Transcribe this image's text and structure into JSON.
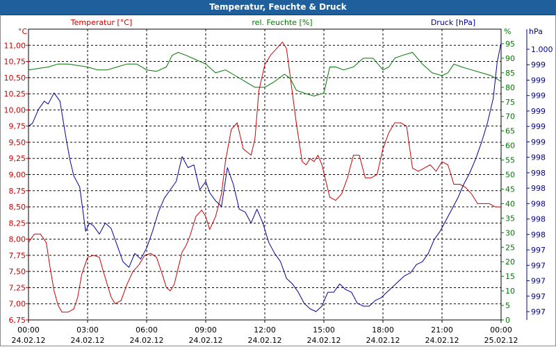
{
  "window": {
    "title": "Temperatur, Feuchte & Druck"
  },
  "colors": {
    "temperature": "#cc0000",
    "humidity": "#007700",
    "pressure": "#000099",
    "title_bar": "#1f5f9c",
    "grid": "#000000"
  },
  "chart_data": {
    "type": "line",
    "title": "Temperatur, Feuchte & Druck",
    "grid": true,
    "x_ticks": [
      {
        "time": "00:00",
        "date": "24.02.12"
      },
      {
        "time": "03:00",
        "date": "24.02.12"
      },
      {
        "time": "06:00",
        "date": "24.02.12"
      },
      {
        "time": "09:00",
        "date": "24.02.12"
      },
      {
        "time": "12:00",
        "date": "24.02.12"
      },
      {
        "time": "15:00",
        "date": "24.02.12"
      },
      {
        "time": "18:00",
        "date": "24.02.12"
      },
      {
        "time": "21:00",
        "date": "24.02.12"
      },
      {
        "time": "00:00",
        "date": "25.02.12"
      }
    ],
    "x_range_hours": [
      0,
      24
    ],
    "axes": {
      "temperature": {
        "label": "Temperatur [°C]",
        "unit": "°C",
        "ylim": [
          6.75,
          11.25
        ],
        "ticks": [
          "6,75",
          "7,00",
          "7,25",
          "7,50",
          "7,75",
          "8,00",
          "8,25",
          "8,50",
          "8,75",
          "9,00",
          "9,25",
          "9,50",
          "9,75",
          "10,00",
          "10,25",
          "10,50",
          "10,75",
          "11,00"
        ]
      },
      "humidity": {
        "label": "rel. Feuchte [%]",
        "unit": "%",
        "ylim": [
          0,
          100
        ],
        "ticks": [
          "0",
          "5",
          "10",
          "15",
          "20",
          "25",
          "30",
          "35",
          "40",
          "45",
          "50",
          "55",
          "60",
          "65",
          "70",
          "75",
          "80",
          "85",
          "90",
          "95"
        ]
      },
      "pressure": {
        "label": "Druck [hPa]",
        "unit": "hPa",
        "ticks": [
          "997",
          "997",
          "997",
          "997",
          "997",
          "998",
          "998",
          "998",
          "998",
          "998",
          "998",
          "999",
          "999",
          "999",
          "999",
          "999",
          "999",
          "1.000"
        ]
      }
    },
    "series": [
      {
        "name": "Temperatur [°C]",
        "axis": "temperature",
        "x": [
          0,
          0.3,
          0.6,
          0.9,
          1.1,
          1.3,
          1.5,
          1.7,
          2.0,
          2.3,
          2.5,
          2.7,
          3.0,
          3.3,
          3.6,
          3.8,
          4.0,
          4.2,
          4.4,
          4.7,
          5.0,
          5.3,
          5.6,
          5.9,
          6.2,
          6.5,
          6.8,
          7.0,
          7.2,
          7.4,
          7.6,
          7.8,
          8.0,
          8.2,
          8.5,
          8.8,
          9.0,
          9.2,
          9.5,
          9.8,
          10.0,
          10.3,
          10.6,
          10.9,
          11.1,
          11.3,
          11.5,
          11.7,
          12.0,
          12.3,
          12.6,
          12.9,
          13.1,
          13.3,
          13.6,
          13.9,
          14.1,
          14.3,
          14.5,
          14.7,
          14.9,
          15.1,
          15.3,
          15.6,
          15.9,
          16.2,
          16.5,
          16.8,
          17.1,
          17.4,
          17.7,
          18.0,
          18.3,
          18.6,
          18.9,
          19.2,
          19.5,
          19.8,
          20.1,
          20.4,
          20.7,
          21.0,
          21.3,
          21.6,
          21.9,
          22.2,
          22.5,
          22.8,
          23.1,
          23.4,
          23.7,
          24.0
        ],
        "y": [
          7.95,
          8.08,
          8.08,
          7.95,
          7.55,
          7.2,
          6.98,
          6.87,
          6.87,
          6.92,
          7.1,
          7.45,
          7.72,
          7.75,
          7.72,
          7.5,
          7.3,
          7.1,
          7.0,
          7.05,
          7.3,
          7.5,
          7.6,
          7.75,
          7.78,
          7.72,
          7.45,
          7.25,
          7.2,
          7.3,
          7.55,
          7.8,
          7.9,
          8.05,
          8.35,
          8.45,
          8.35,
          8.15,
          8.35,
          8.7,
          9.2,
          9.7,
          9.8,
          9.4,
          9.35,
          9.3,
          9.55,
          10.3,
          10.7,
          10.85,
          10.95,
          11.05,
          10.95,
          10.5,
          9.8,
          9.2,
          9.15,
          9.25,
          9.2,
          9.3,
          9.15,
          8.9,
          8.65,
          8.6,
          8.7,
          8.95,
          9.3,
          9.3,
          8.95,
          8.95,
          9.0,
          9.4,
          9.65,
          9.8,
          9.8,
          9.75,
          9.1,
          9.05,
          9.1,
          9.15,
          9.05,
          9.2,
          9.15,
          8.85,
          8.85,
          8.8,
          8.7,
          8.55,
          8.55,
          8.55,
          8.5,
          8.5
        ]
      },
      {
        "name": "rel. Feuchte [%]",
        "axis": "humidity",
        "x": [
          0,
          0.5,
          1.0,
          1.5,
          2.0,
          2.5,
          3.0,
          3.5,
          4.0,
          4.5,
          5.0,
          5.5,
          6.0,
          6.5,
          7.0,
          7.3,
          7.6,
          8.0,
          8.5,
          9.0,
          9.5,
          10.0,
          10.5,
          11.0,
          11.5,
          12.0,
          12.5,
          13.0,
          13.3,
          13.6,
          14.0,
          14.5,
          15.0,
          15.3,
          15.6,
          16.0,
          16.5,
          17.0,
          17.5,
          18.0,
          18.3,
          18.6,
          19.0,
          19.5,
          20.0,
          20.5,
          21.0,
          21.3,
          21.6,
          22.0,
          22.5,
          23.0,
          23.5,
          24.0
        ],
        "y": [
          86,
          86.5,
          87,
          88,
          88,
          87.5,
          87,
          86,
          86,
          87,
          88,
          88,
          86,
          85.5,
          87,
          91,
          92,
          91,
          89.5,
          88,
          85,
          86,
          84,
          82,
          80,
          80,
          82,
          84.5,
          83,
          79,
          78,
          77,
          78,
          87,
          87,
          86,
          87,
          90,
          90,
          86,
          87,
          90,
          91,
          92,
          88,
          85,
          84,
          85,
          88,
          87,
          86,
          85,
          84,
          82
        ]
      },
      {
        "name": "Druck [hPa]",
        "axis": "pressure",
        "x": [
          0,
          0.2,
          0.5,
          0.8,
          1.0,
          1.3,
          1.6,
          1.9,
          2.1,
          2.3,
          2.6,
          2.9,
          3.1,
          3.3,
          3.6,
          3.9,
          4.2,
          4.5,
          4.8,
          5.1,
          5.4,
          5.7,
          6.0,
          6.3,
          6.6,
          6.9,
          7.2,
          7.5,
          7.8,
          8.1,
          8.4,
          8.7,
          9.0,
          9.2,
          9.5,
          9.8,
          10.1,
          10.4,
          10.7,
          11.0,
          11.3,
          11.6,
          11.9,
          12.2,
          12.5,
          12.8,
          13.1,
          13.4,
          13.7,
          14.0,
          14.3,
          14.6,
          14.9,
          15.2,
          15.5,
          15.8,
          16.1,
          16.4,
          16.7,
          17.0,
          17.3,
          17.6,
          17.9,
          18.2,
          18.5,
          18.8,
          19.1,
          19.4,
          19.7,
          20.0,
          20.3,
          20.6,
          20.9,
          21.2,
          21.5,
          21.8,
          22.1,
          22.4,
          22.7,
          23.0,
          23.3,
          23.6,
          23.8,
          24.0
        ],
        "y": [
          0.7,
          0.71,
          0.76,
          0.79,
          0.78,
          0.82,
          0.79,
          0.66,
          0.58,
          0.52,
          0.48,
          0.32,
          0.35,
          0.34,
          0.31,
          0.35,
          0.33,
          0.27,
          0.21,
          0.19,
          0.24,
          0.22,
          0.26,
          0.32,
          0.39,
          0.44,
          0.47,
          0.5,
          0.59,
          0.55,
          0.56,
          0.47,
          0.5,
          0.46,
          0.43,
          0.41,
          0.55,
          0.49,
          0.4,
          0.39,
          0.35,
          0.4,
          0.35,
          0.28,
          0.24,
          0.21,
          0.15,
          0.13,
          0.1,
          0.06,
          0.04,
          0.03,
          0.05,
          0.1,
          0.1,
          0.13,
          0.11,
          0.1,
          0.06,
          0.05,
          0.05,
          0.07,
          0.08,
          0.1,
          0.12,
          0.14,
          0.16,
          0.17,
          0.2,
          0.21,
          0.24,
          0.29,
          0.32,
          0.36,
          0.4,
          0.44,
          0.49,
          0.53,
          0.58,
          0.64,
          0.71,
          0.8,
          0.93,
          1.0
        ]
      }
    ]
  }
}
